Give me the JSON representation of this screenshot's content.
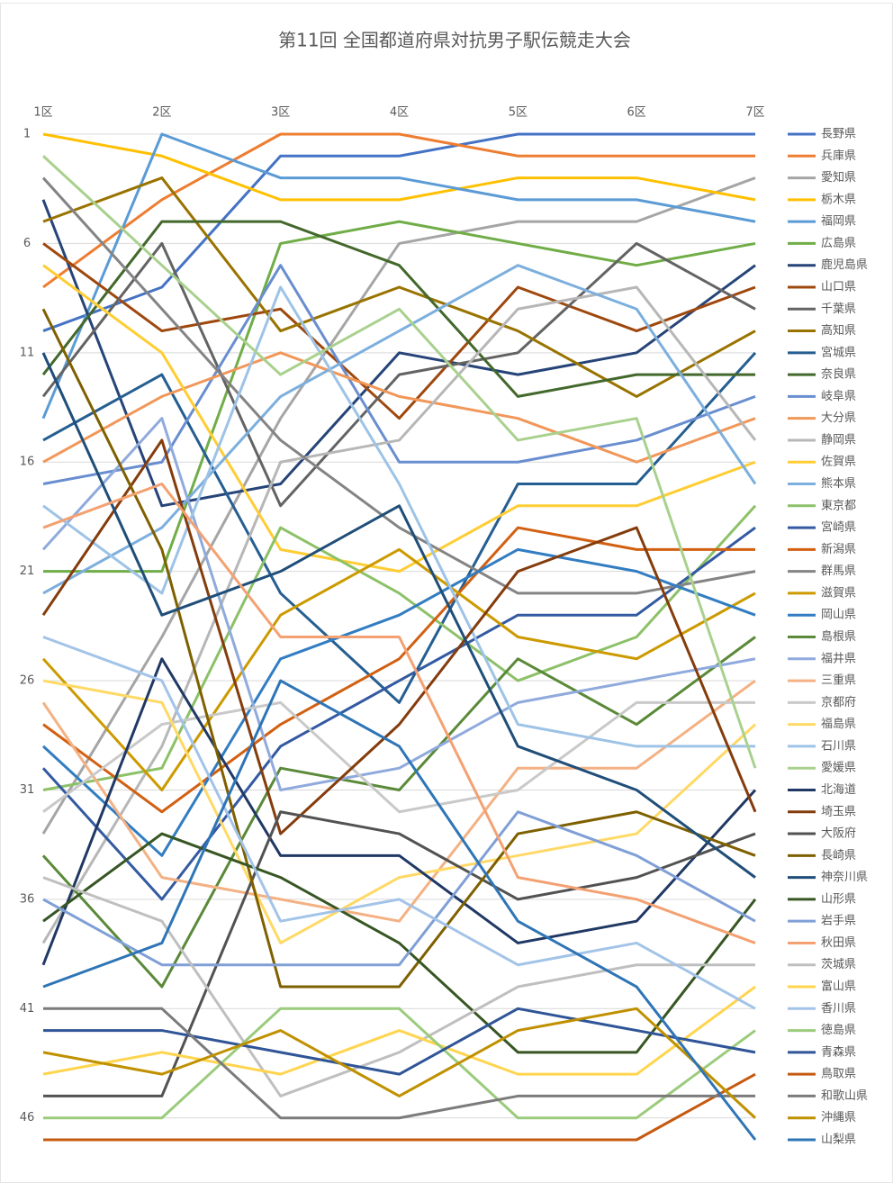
{
  "chart_data": {
    "type": "line",
    "title": "第11回 全国都道府県対抗男子駅伝競走大会",
    "categories": [
      "1区",
      "2区",
      "3区",
      "4区",
      "5区",
      "6区",
      "7区"
    ],
    "ylim": [
      1,
      47
    ],
    "y_reversed": true,
    "yticks": [
      1,
      6,
      11,
      16,
      21,
      26,
      31,
      36,
      41,
      46
    ],
    "grid": true,
    "legend": "right",
    "series": [
      {
        "name": "長野県",
        "color": "#4472C4",
        "values": [
          10,
          8,
          2,
          2,
          1,
          1,
          1
        ]
      },
      {
        "name": "兵庫県",
        "color": "#ED7D31",
        "values": [
          8,
          4,
          1,
          1,
          2,
          2,
          2
        ]
      },
      {
        "name": "愛知県",
        "color": "#A5A5A5",
        "values": [
          33,
          24,
          14,
          6,
          5,
          5,
          3
        ]
      },
      {
        "name": "栃木県",
        "color": "#FFC000",
        "values": [
          1,
          2,
          4,
          4,
          3,
          3,
          4
        ]
      },
      {
        "name": "福岡県",
        "color": "#5B9BD5",
        "values": [
          14,
          1,
          3,
          3,
          4,
          4,
          5
        ]
      },
      {
        "name": "広島県",
        "color": "#70AD47",
        "values": [
          21,
          21,
          6,
          5,
          6,
          7,
          6
        ]
      },
      {
        "name": "鹿児島県",
        "color": "#264478",
        "values": [
          4,
          18,
          17,
          11,
          12,
          11,
          7
        ]
      },
      {
        "name": "山口県",
        "color": "#9E480E",
        "values": [
          6,
          10,
          9,
          14,
          8,
          10,
          8
        ]
      },
      {
        "name": "千葉県",
        "color": "#636363",
        "values": [
          13,
          6,
          18,
          12,
          11,
          6,
          9
        ]
      },
      {
        "name": "高知県",
        "color": "#997300",
        "values": [
          5,
          3,
          10,
          8,
          10,
          13,
          10
        ]
      },
      {
        "name": "宮城県",
        "color": "#255E91",
        "values": [
          15,
          12,
          22,
          27,
          17,
          17,
          11
        ]
      },
      {
        "name": "奈良県",
        "color": "#43682B",
        "values": [
          12,
          5,
          5,
          7,
          13,
          12,
          12
        ]
      },
      {
        "name": "岐阜県",
        "color": "#698ED0",
        "values": [
          17,
          16,
          7,
          16,
          16,
          15,
          13
        ]
      },
      {
        "name": "大分県",
        "color": "#F1975A",
        "values": [
          16,
          13,
          11,
          13,
          14,
          16,
          14
        ]
      },
      {
        "name": "静岡県",
        "color": "#B7B7B7",
        "values": [
          38,
          29,
          16,
          15,
          9,
          8,
          15
        ]
      },
      {
        "name": "佐賀県",
        "color": "#FFCD33",
        "values": [
          7,
          11,
          20,
          21,
          18,
          18,
          16
        ]
      },
      {
        "name": "熊本県",
        "color": "#7CAFDD",
        "values": [
          22,
          19,
          13,
          10,
          7,
          9,
          17
        ]
      },
      {
        "name": "東京都",
        "color": "#8CC168",
        "values": [
          31,
          30,
          19,
          22,
          26,
          24,
          18
        ]
      },
      {
        "name": "宮崎県",
        "color": "#335AA1",
        "values": [
          30,
          36,
          29,
          26,
          23,
          23,
          19
        ]
      },
      {
        "name": "新潟県",
        "color": "#D26012",
        "values": [
          28,
          32,
          28,
          25,
          19,
          20,
          20
        ]
      },
      {
        "name": "群馬県",
        "color": "#848484",
        "values": [
          3,
          9,
          15,
          19,
          22,
          22,
          21
        ]
      },
      {
        "name": "滋賀県",
        "color": "#CC9A00",
        "values": [
          25,
          31,
          23,
          20,
          24,
          25,
          22
        ]
      },
      {
        "name": "岡山県",
        "color": "#327DC2",
        "values": [
          29,
          34,
          25,
          23,
          20,
          21,
          23
        ]
      },
      {
        "name": "島根県",
        "color": "#5A8A39",
        "values": [
          34,
          40,
          30,
          31,
          25,
          28,
          24
        ]
      },
      {
        "name": "福井県",
        "color": "#8FAADC",
        "values": [
          20,
          14,
          31,
          30,
          27,
          26,
          25
        ]
      },
      {
        "name": "三重県",
        "color": "#F4B183",
        "values": [
          27,
          35,
          36,
          37,
          30,
          30,
          26
        ]
      },
      {
        "name": "京都府",
        "color": "#C9C9C9",
        "values": [
          32,
          28,
          27,
          32,
          31,
          27,
          27
        ]
      },
      {
        "name": "福島県",
        "color": "#FFD966",
        "values": [
          26,
          27,
          38,
          35,
          34,
          33,
          28
        ]
      },
      {
        "name": "石川県",
        "color": "#9DC3E6",
        "values": [
          18,
          22,
          8,
          17,
          28,
          29,
          29
        ]
      },
      {
        "name": "愛媛県",
        "color": "#A9D18E",
        "values": [
          2,
          7,
          12,
          9,
          15,
          14,
          30
        ]
      },
      {
        "name": "北海道",
        "color": "#203864",
        "values": [
          39,
          25,
          34,
          34,
          38,
          37,
          31
        ]
      },
      {
        "name": "埼玉県",
        "color": "#843C0C",
        "values": [
          23,
          15,
          33,
          28,
          21,
          19,
          32
        ]
      },
      {
        "name": "大阪府",
        "color": "#525252",
        "values": [
          45,
          45,
          32,
          33,
          36,
          35,
          33
        ]
      },
      {
        "name": "長崎県",
        "color": "#7F6000",
        "values": [
          9,
          20,
          40,
          40,
          33,
          32,
          34
        ]
      },
      {
        "name": "神奈川県",
        "color": "#1F4E79",
        "values": [
          11,
          23,
          21,
          18,
          29,
          31,
          35
        ]
      },
      {
        "name": "山形県",
        "color": "#375623",
        "values": [
          37,
          33,
          35,
          38,
          43,
          43,
          36
        ]
      },
      {
        "name": "岩手県",
        "color": "#7F9FD6",
        "values": [
          36,
          39,
          39,
          39,
          32,
          34,
          37
        ]
      },
      {
        "name": "秋田県",
        "color": "#F4A172",
        "values": [
          19,
          17,
          24,
          24,
          35,
          36,
          38
        ]
      },
      {
        "name": "茨城県",
        "color": "#BFBFBF",
        "values": [
          35,
          37,
          45,
          43,
          40,
          39,
          39
        ]
      },
      {
        "name": "富山県",
        "color": "#FFD54F",
        "values": [
          44,
          43,
          44,
          42,
          44,
          44,
          40
        ]
      },
      {
        "name": "香川県",
        "color": "#A3C4E8",
        "values": [
          24,
          26,
          37,
          36,
          39,
          38,
          41
        ]
      },
      {
        "name": "徳島県",
        "color": "#9BCB7C",
        "values": [
          46,
          46,
          41,
          41,
          46,
          46,
          42
        ]
      },
      {
        "name": "青森県",
        "color": "#2F5597",
        "values": [
          42,
          42,
          43,
          44,
          41,
          42,
          43
        ]
      },
      {
        "name": "鳥取県",
        "color": "#C55A11",
        "values": [
          47,
          47,
          47,
          47,
          47,
          47,
          44
        ]
      },
      {
        "name": "和歌山県",
        "color": "#7B7B7B",
        "values": [
          41,
          41,
          46,
          46,
          45,
          45,
          45
        ]
      },
      {
        "name": "沖縄県",
        "color": "#BF9000",
        "values": [
          43,
          44,
          42,
          45,
          42,
          41,
          46
        ]
      },
      {
        "name": "山梨県",
        "color": "#2E75B6",
        "values": [
          40,
          38,
          26,
          29,
          37,
          40,
          47
        ]
      }
    ]
  }
}
